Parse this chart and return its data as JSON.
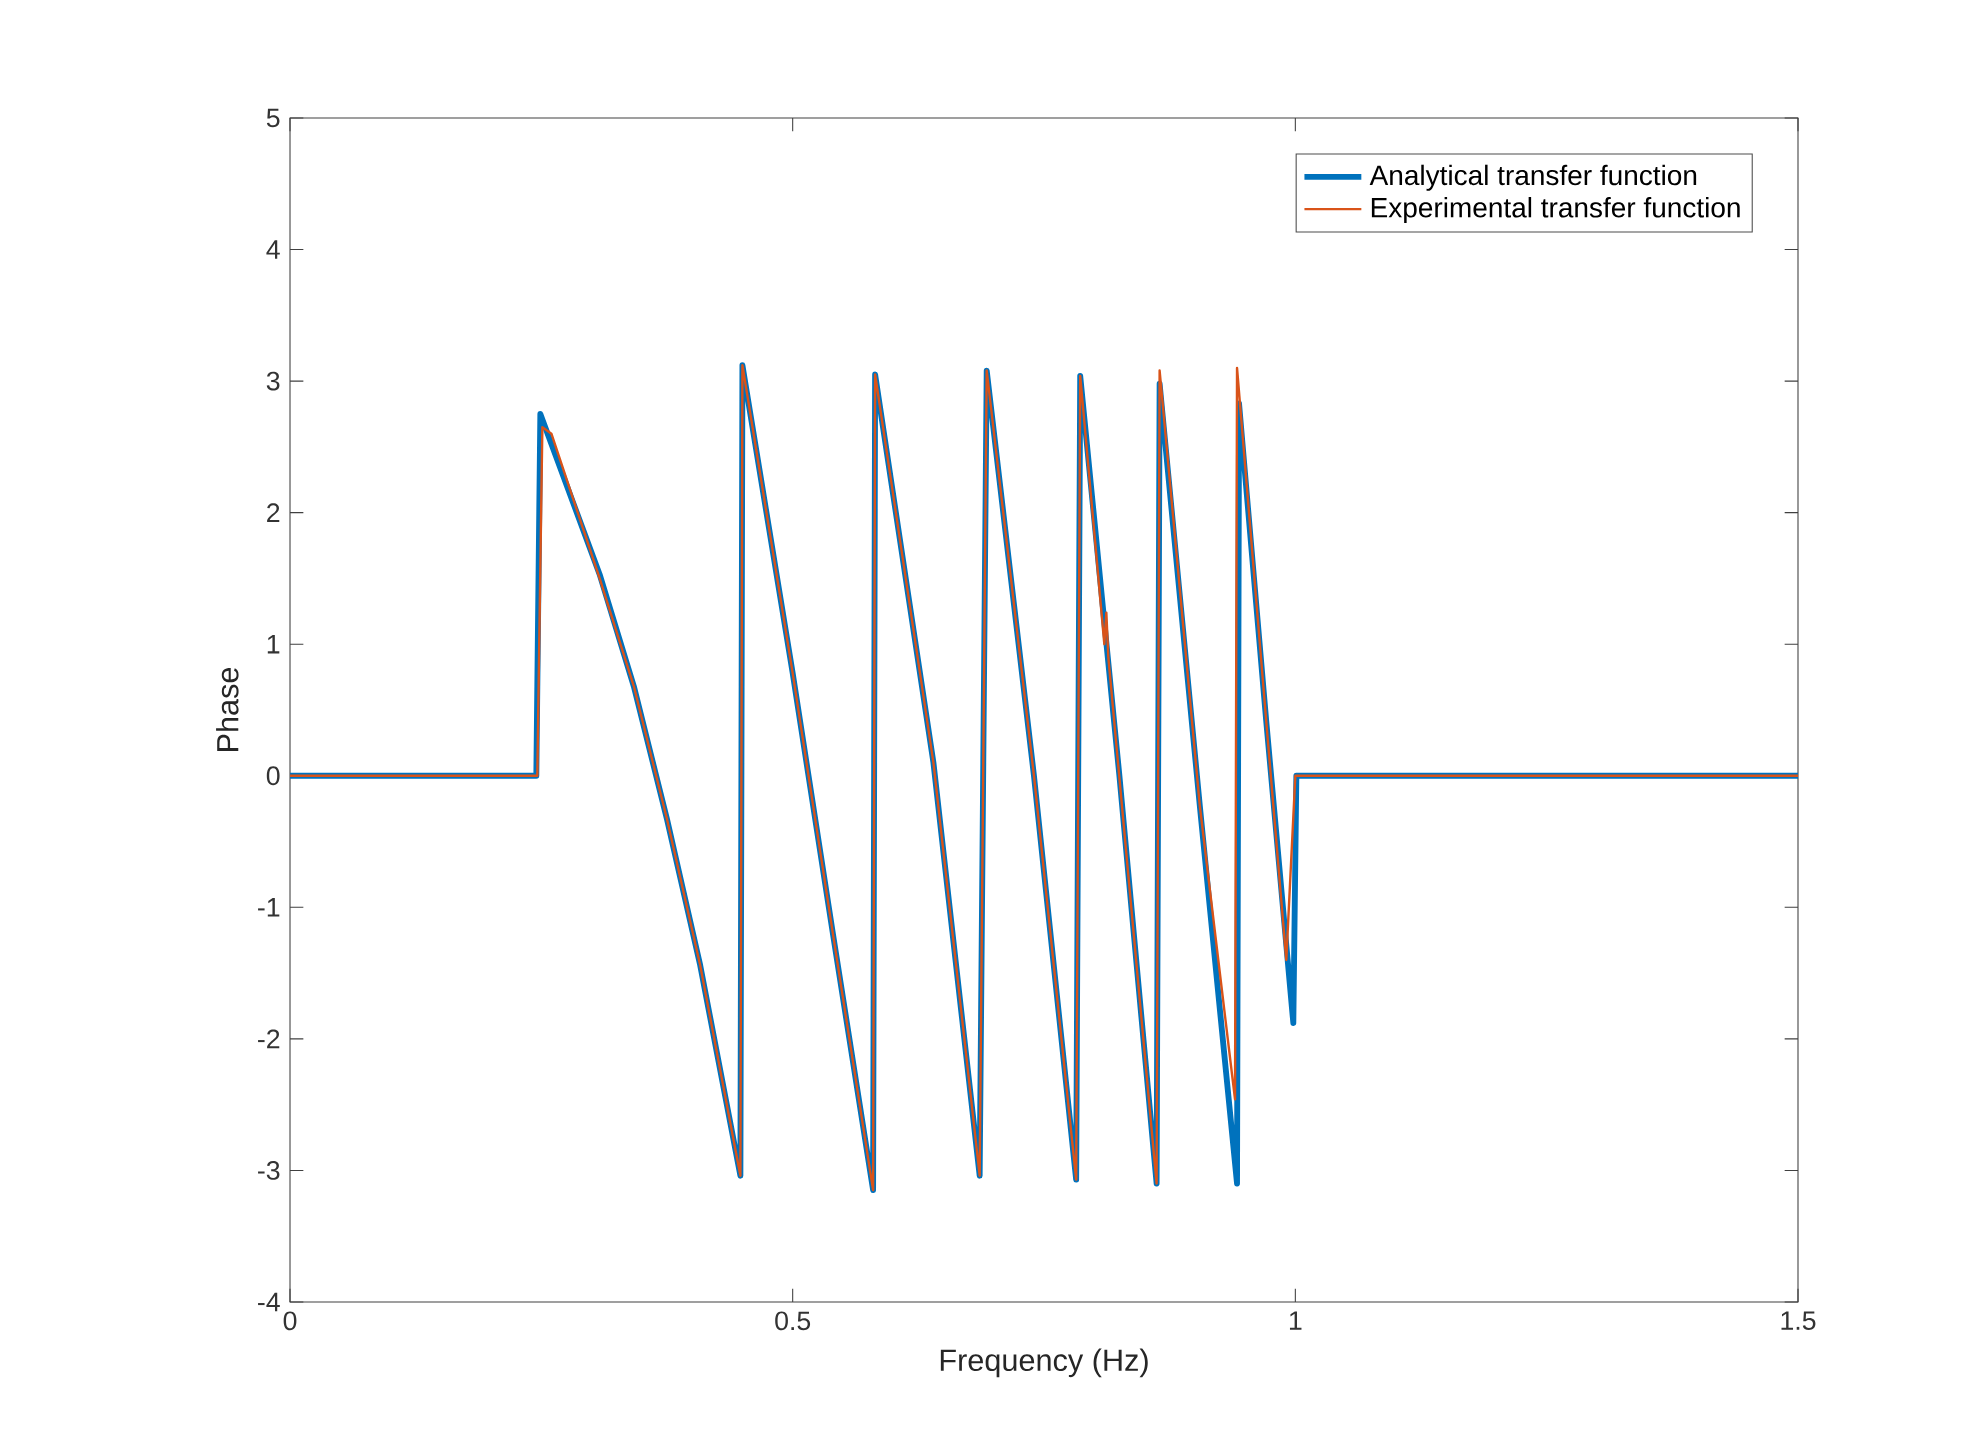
{
  "chart_data": {
    "type": "line",
    "xlabel": "Frequency (Hz)",
    "ylabel": "Phase",
    "xlim": [
      0,
      1.5
    ],
    "xticks": [
      0,
      0.5,
      1,
      1.5
    ],
    "ylim": [
      -4,
      5
    ],
    "yticks": [
      -4,
      -3,
      -2,
      -1,
      0,
      1,
      2,
      3,
      4,
      5
    ],
    "legend": "top right",
    "grid": false,
    "marker": "none",
    "line_style": "solid",
    "series": [
      {
        "name": "Analytical transfer function",
        "color": "#0072bd",
        "x": [
          0,
          0.245,
          0.249,
          0.308,
          0.342,
          0.375,
          0.408,
          0.448,
          0.45,
          0.5,
          0.54,
          0.58,
          0.582,
          0.64,
          0.686,
          0.693,
          0.74,
          0.782,
          0.786,
          0.825,
          0.862,
          0.865,
          0.905,
          0.942,
          0.944,
          0.971,
          0.998,
          1.001,
          1.5
        ],
        "values": [
          0,
          0,
          2.75,
          1.53,
          0.68,
          -0.33,
          -1.44,
          -3.04,
          3.12,
          0.78,
          -1.2,
          -3.15,
          3.05,
          0.1,
          -3.04,
          3.08,
          0.0,
          -3.07,
          3.04,
          0.0,
          -3.1,
          2.98,
          -0.23,
          -3.1,
          2.83,
          0.42,
          -1.88,
          0,
          0
        ]
      },
      {
        "name": "Experimental transfer function",
        "color": "#d95319",
        "x": [
          0,
          0.246,
          0.251,
          0.26,
          0.308,
          0.342,
          0.375,
          0.408,
          0.448,
          0.45,
          0.5,
          0.54,
          0.58,
          0.582,
          0.64,
          0.686,
          0.693,
          0.74,
          0.782,
          0.786,
          0.81,
          0.812,
          0.814,
          0.862,
          0.865,
          0.905,
          0.94,
          0.942,
          0.971,
          0.991,
          1.0,
          1.5
        ],
        "values": [
          0,
          0,
          2.65,
          2.6,
          1.5,
          0.68,
          -0.33,
          -1.44,
          -3.04,
          3.12,
          0.78,
          -1.2,
          -3.15,
          3.05,
          0.1,
          -3.04,
          3.08,
          0.0,
          -3.07,
          3.04,
          1.0,
          1.24,
          0.9,
          -3.1,
          3.08,
          -0.23,
          -2.46,
          3.1,
          0.42,
          -1.4,
          0,
          0
        ]
      }
    ]
  }
}
